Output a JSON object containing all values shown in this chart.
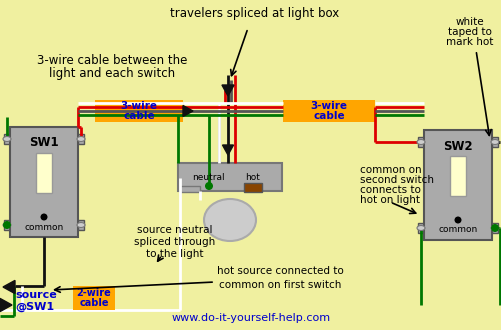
{
  "bg_color": "#f0f0a0",
  "orange_color": "#ffa500",
  "blue_text_color": "#0000cc",
  "green_wire": "#007700",
  "red_wire": "#dd0000",
  "black_wire": "#111111",
  "white_wire": "#ffffff",
  "gray_wire": "#888888",
  "brown_term": "#884400",
  "switch_body": "#aaaaaa",
  "switch_outline": "#555555",
  "toggle_color": "#ffffcc",
  "screw_color": "#cccccc",
  "title_text": "travelers spliced at light box",
  "subtitle_line1": "3-wire cable between the",
  "subtitle_line2": "light and each switch",
  "label1": "3-wire\ncable",
  "label2": "3-wire\ncable",
  "label3": "2-wire\ncable",
  "source_label_line1": "source",
  "source_label_line2": "@SW1",
  "note1_line1": "common on",
  "note1_line2": "second switch",
  "note1_line3": "connects to",
  "note1_line4": "hot on light",
  "note2_line1": "source neutral",
  "note2_line2": "spliced through",
  "note2_line3": "to the light",
  "note3": "hot source connected to\ncommon on first switch",
  "note4_line1": "white",
  "note4_line2": "taped to",
  "note4_line3": "mark hot",
  "neutral_label": "neutral",
  "hot_label": "hot",
  "website": "www.do-it-yourself-help.com",
  "sw1_label": "SW1",
  "sw2_label": "SW2",
  "common1": "common",
  "common2": "common"
}
